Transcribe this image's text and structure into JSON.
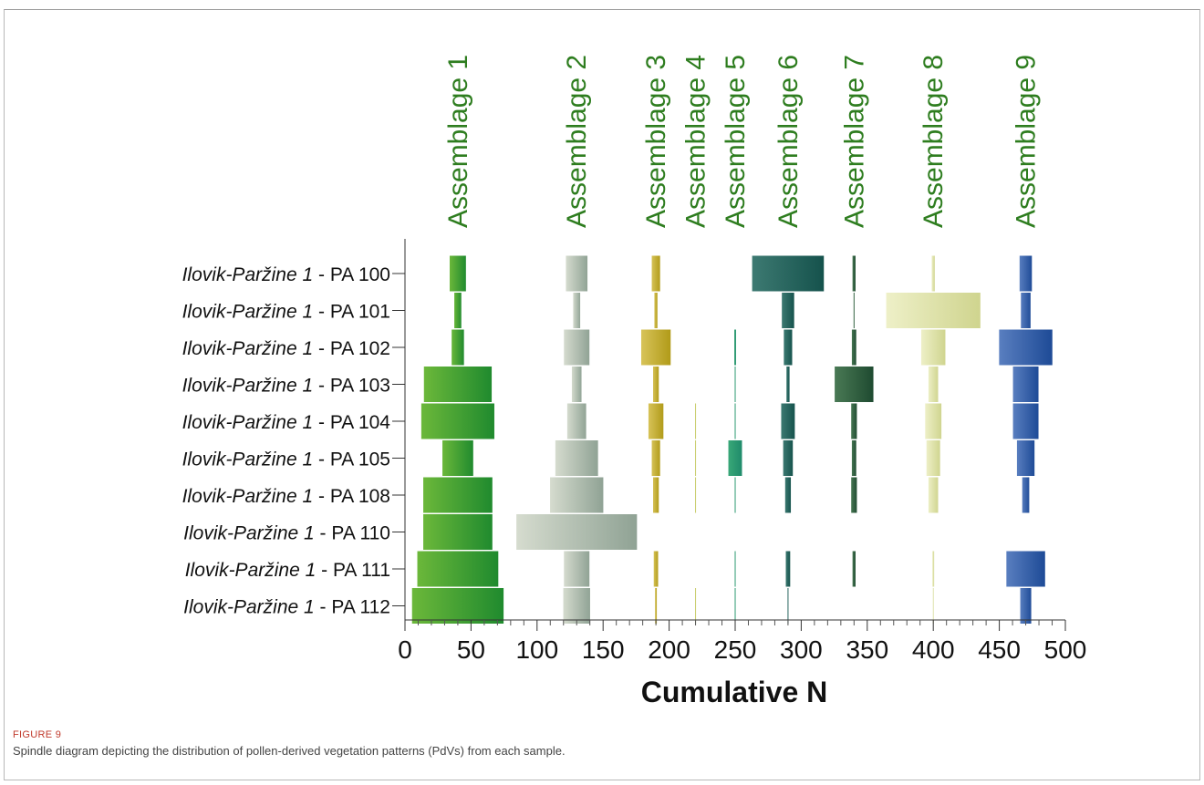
{
  "figure_label": "FIGURE 9",
  "caption": "Spindle diagram depicting the distribution of pollen-derived vegetation patterns (PdVs) from each sample.",
  "colors": {
    "assemblages": [
      [
        "#6cb83a",
        "#1f8a2e"
      ],
      [
        "#d6dccf",
        "#8fa294"
      ],
      [
        "#d8c45a",
        "#b09a18"
      ],
      [
        "#c8cc6a",
        "#c8cc6a"
      ],
      [
        "#3aa878",
        "#1e8a6a"
      ],
      [
        "#3d7a72",
        "#15524c"
      ],
      [
        "#4a7a55",
        "#1e4a30"
      ],
      [
        "#eef0c8",
        "#cfd48e"
      ],
      [
        "#5a7fc0",
        "#1d4a96"
      ]
    ]
  },
  "chart_data": {
    "type": "spindle",
    "title": "",
    "xlabel": "Cumulative N",
    "ylabel": "",
    "xlim": [
      0,
      500
    ],
    "xticks": [
      0,
      50,
      100,
      150,
      200,
      250,
      300,
      350,
      400,
      450,
      500
    ],
    "samples": [
      {
        "prefix": "Ilovik-Paržine 1",
        "suffix": " - PA 100"
      },
      {
        "prefix": "Ilovik-Paržine 1",
        "suffix": " - PA 101"
      },
      {
        "prefix": "Ilovik-Paržine 1",
        "suffix": " - PA 102"
      },
      {
        "prefix": "Ilovik-Paržine 1",
        "suffix": " - PA 103"
      },
      {
        "prefix": "Ilovik-Paržine 1",
        "suffix": " - PA 104"
      },
      {
        "prefix": "Ilovik-Paržine 1",
        "suffix": " - PA 105"
      },
      {
        "prefix": "Ilovik-Paržine 1",
        "suffix": " - PA 108"
      },
      {
        "prefix": "Ilovik-Paržine 1",
        "suffix": " - PA 110"
      },
      {
        "prefix": "Ilovik-Paržine 1",
        "suffix": " - PA 111"
      },
      {
        "prefix": "Ilovik-Paržine 1",
        "suffix": " - PA 112"
      }
    ],
    "assemblages": [
      {
        "name": "Assemblage 1",
        "center": 40,
        "values": [
          13,
          6,
          10,
          52,
          56,
          24,
          53,
          53,
          62,
          70
        ]
      },
      {
        "name": "Assemblage 2",
        "center": 130,
        "values": [
          17,
          6,
          20,
          8,
          15,
          33,
          41,
          92,
          20,
          21
        ]
      },
      {
        "name": "Assemblage 3",
        "center": 190,
        "values": [
          7,
          3,
          23,
          5,
          12,
          7,
          5,
          0,
          4,
          2
        ]
      },
      {
        "name": "Assemblage 4",
        "center": 220,
        "values": [
          0,
          0,
          0,
          0,
          1,
          1,
          1,
          0,
          0,
          1
        ]
      },
      {
        "name": "Assemblage 5",
        "center": 250,
        "values": [
          0,
          0,
          2,
          1,
          1,
          11,
          1,
          0,
          1,
          1
        ]
      },
      {
        "name": "Assemblage 6",
        "center": 290,
        "values": [
          55,
          10,
          7,
          3,
          11,
          8,
          5,
          0,
          4,
          1
        ]
      },
      {
        "name": "Assemblage 7",
        "center": 340,
        "values": [
          3,
          1,
          4,
          30,
          5,
          4,
          5,
          0,
          3,
          0
        ]
      },
      {
        "name": "Assemblage 8",
        "center": 400,
        "values": [
          3,
          72,
          19,
          8,
          13,
          11,
          8,
          0,
          2,
          1
        ]
      },
      {
        "name": "Assemblage 9",
        "center": 470,
        "values": [
          10,
          8,
          41,
          20,
          20,
          14,
          6,
          0,
          30,
          9
        ]
      }
    ]
  }
}
